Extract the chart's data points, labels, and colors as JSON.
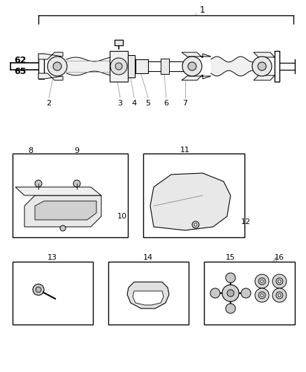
{
  "bg_color": "#ffffff",
  "lc": "#000000",
  "gc": "#999999",
  "figsize": [
    4.38,
    5.33
  ],
  "dpi": 100
}
